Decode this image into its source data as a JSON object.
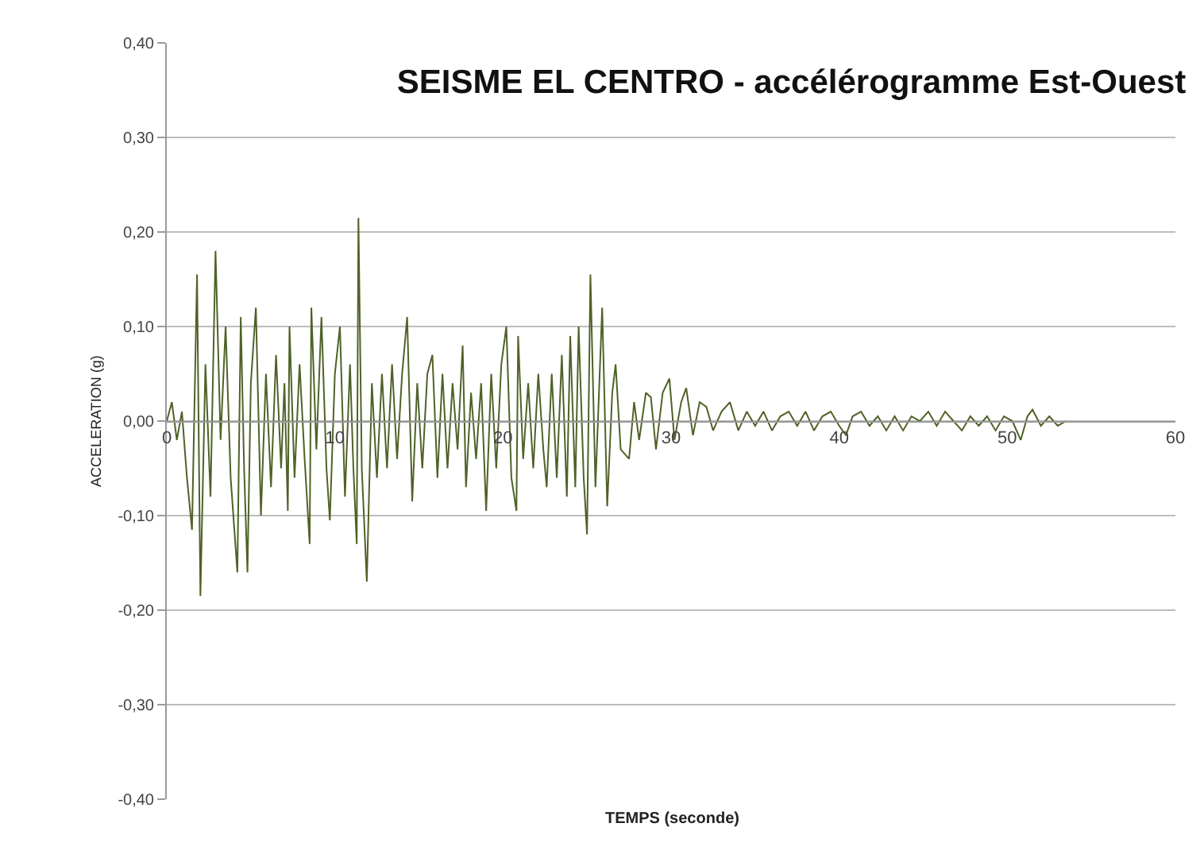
{
  "chart_data": {
    "type": "line",
    "title": "SEISME EL CENTRO - accélérogramme Est-Ouest",
    "xlabel": "TEMPS (seconde)",
    "ylabel": "ACCELERATION (g)",
    "x": [
      0,
      0.3,
      0.6,
      0.9,
      1.2,
      1.5,
      1.8,
      2.0,
      2.3,
      2.6,
      2.9,
      3.2,
      3.5,
      3.8,
      4.2,
      4.4,
      4.6,
      4.8,
      5.0,
      5.3,
      5.6,
      5.9,
      6.2,
      6.5,
      6.8,
      7.0,
      7.2,
      7.3,
      7.6,
      7.9,
      8.2,
      8.5,
      8.6,
      8.9,
      9.2,
      9.5,
      9.7,
      10.0,
      10.3,
      10.6,
      10.9,
      11.1,
      11.3,
      11.4,
      11.6,
      11.9,
      12.2,
      12.5,
      12.8,
      13.1,
      13.4,
      13.7,
      14.0,
      14.3,
      14.6,
      14.9,
      15.2,
      15.5,
      15.8,
      16.1,
      16.4,
      16.7,
      17.0,
      17.3,
      17.6,
      17.8,
      18.1,
      18.4,
      18.7,
      19.0,
      19.3,
      19.6,
      19.9,
      20.2,
      20.5,
      20.8,
      20.9,
      21.2,
      21.5,
      21.8,
      22.1,
      22.4,
      22.6,
      22.9,
      23.2,
      23.5,
      23.8,
      24.0,
      24.3,
      24.5,
      24.8,
      25.0,
      25.2,
      25.5,
      25.9,
      26.2,
      26.5,
      26.7,
      27.0,
      27.5,
      27.8,
      28.1,
      28.5,
      28.8,
      29.1,
      29.5,
      29.9,
      30.2,
      30.6,
      30.9,
      31.3,
      31.7,
      32.1,
      32.5,
      33.0,
      33.5,
      34.0,
      34.5,
      35.0,
      35.5,
      36.0,
      36.5,
      37.0,
      37.5,
      38.0,
      38.5,
      39.0,
      39.5,
      40.0,
      40.4,
      40.8,
      41.3,
      41.8,
      42.3,
      42.8,
      43.3,
      43.8,
      44.3,
      44.8,
      45.3,
      45.8,
      46.3,
      46.8,
      47.3,
      47.8,
      48.3,
      48.8,
      49.3,
      49.8,
      50.3,
      50.8,
      51.2,
      51.5,
      52.0,
      52.5,
      53.0,
      53.5
    ],
    "series": [
      {
        "color": "#4f6228",
        "values": [
          0,
          0.02,
          -0.02,
          0.01,
          -0.06,
          -0.115,
          0.155,
          -0.185,
          0.06,
          -0.08,
          0.18,
          -0.02,
          0.1,
          -0.06,
          -0.16,
          0.11,
          -0.05,
          -0.16,
          0.04,
          0.12,
          -0.1,
          0.05,
          -0.07,
          0.07,
          -0.05,
          0.04,
          -0.095,
          0.1,
          -0.06,
          0.06,
          -0.04,
          -0.13,
          0.12,
          -0.03,
          0.11,
          -0.05,
          -0.105,
          0.05,
          0.1,
          -0.08,
          0.06,
          -0.05,
          -0.13,
          0.215,
          -0.05,
          -0.17,
          0.04,
          -0.06,
          0.05,
          -0.05,
          0.06,
          -0.04,
          0.05,
          0.11,
          -0.085,
          0.04,
          -0.05,
          0.05,
          0.07,
          -0.06,
          0.05,
          -0.05,
          0.04,
          -0.03,
          0.08,
          -0.07,
          0.03,
          -0.04,
          0.04,
          -0.095,
          0.05,
          -0.05,
          0.06,
          0.1,
          -0.06,
          -0.095,
          0.09,
          -0.04,
          0.04,
          -0.05,
          0.05,
          -0.03,
          -0.07,
          0.05,
          -0.06,
          0.07,
          -0.08,
          0.09,
          -0.07,
          0.1,
          -0.06,
          -0.12,
          0.155,
          -0.07,
          0.12,
          -0.09,
          0.03,
          0.06,
          -0.03,
          -0.04,
          0.02,
          -0.02,
          0.03,
          0.025,
          -0.03,
          0.03,
          0.045,
          -0.02,
          0.02,
          0.035,
          -0.015,
          0.02,
          0.015,
          -0.01,
          0.01,
          0.02,
          -0.01,
          0.01,
          -0.005,
          0.01,
          -0.01,
          0.005,
          0.01,
          -0.005,
          0.01,
          -0.01,
          0.005,
          0.01,
          -0.005,
          -0.015,
          0.005,
          0.01,
          -0.005,
          0.005,
          -0.01,
          0.005,
          -0.01,
          0.005,
          0,
          0.01,
          -0.005,
          0.01,
          0,
          -0.01,
          0.005,
          -0.005,
          0.005,
          -0.01,
          0.005,
          0,
          -0.02,
          0.005,
          0.012,
          -0.005,
          0.005,
          -0.005,
          0
        ]
      }
    ],
    "xlim": [
      0,
      60
    ],
    "xticks": [
      0,
      10,
      20,
      30,
      40,
      50,
      60
    ],
    "ylim": [
      -0.4,
      0.4
    ],
    "yticks": [
      {
        "value": -0.4,
        "label": "-0,40"
      },
      {
        "value": -0.3,
        "label": "-0,30"
      },
      {
        "value": -0.2,
        "label": "-0,20"
      },
      {
        "value": -0.1,
        "label": "-0,10"
      },
      {
        "value": 0,
        "label": "0,00"
      },
      {
        "value": 0.1,
        "label": "0,10"
      },
      {
        "value": 0.2,
        "label": "0,20"
      },
      {
        "value": 0.3,
        "label": "0,30"
      },
      {
        "value": 0.4,
        "label": "0,40"
      }
    ],
    "grid": "y",
    "marker": "none",
    "line_style": "solid"
  }
}
